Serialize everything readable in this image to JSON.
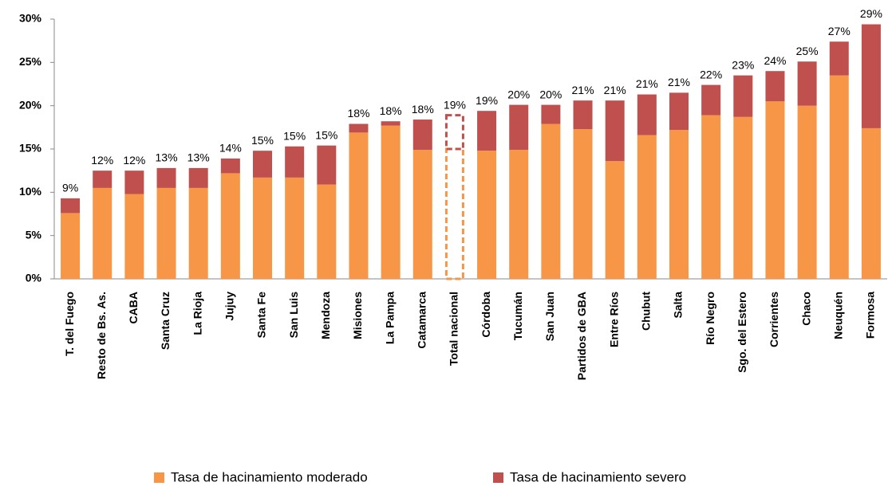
{
  "chart_data": {
    "type": "stacked_bar",
    "categories": [
      "T. del Fuego",
      "Resto de Bs. As.",
      "CABA",
      "Santa Cruz",
      "La Rioja",
      "Jujuy",
      "Santa Fe",
      "San Luis",
      "Mendoza",
      "Misiones",
      "La Pampa",
      "Catamarca",
      "Total nacional",
      "Córdoba",
      "Tucumán",
      "San Juan",
      "Partidos de GBA",
      "Entre Ríos",
      "Chubut",
      "Salta",
      "Río Negro",
      "Sgo. del Estero",
      "Corrientes",
      "Chaco",
      "Neuquén",
      "Formosa"
    ],
    "series": [
      {
        "name": "Tasa de hacinamiento moderado",
        "color": "#f79646",
        "values": [
          7.6,
          10.5,
          9.8,
          10.5,
          10.5,
          12.2,
          11.7,
          11.7,
          10.9,
          16.9,
          17.7,
          14.9,
          15.0,
          14.8,
          14.9,
          17.9,
          17.3,
          13.6,
          16.6,
          17.2,
          18.9,
          18.7,
          20.5,
          20.0,
          23.5,
          17.4
        ]
      },
      {
        "name": "Tasa de hacinamiento severo",
        "color": "#c0504d",
        "values": [
          1.7,
          2.0,
          2.7,
          2.3,
          2.3,
          1.7,
          3.1,
          3.6,
          4.5,
          1.0,
          0.5,
          3.5,
          3.9,
          4.6,
          5.2,
          2.2,
          3.3,
          7.0,
          4.7,
          4.3,
          3.5,
          4.8,
          3.5,
          5.1,
          3.9,
          12.0
        ]
      }
    ],
    "total_labels": [
      "9%",
      "12%",
      "12%",
      "13%",
      "13%",
      "14%",
      "15%",
      "15%",
      "15%",
      "18%",
      "18%",
      "18%",
      "19%",
      "19%",
      "20%",
      "20%",
      "21%",
      "21%",
      "21%",
      "21%",
      "22%",
      "23%",
      "24%",
      "25%",
      "27%",
      "29%"
    ],
    "highlight_category": "Total nacional",
    "ylim": [
      0,
      30
    ],
    "yticks": [
      {
        "value": 0,
        "label": "0%"
      },
      {
        "value": 5,
        "label": "5%"
      },
      {
        "value": 10,
        "label": "10%"
      },
      {
        "value": 15,
        "label": "15%"
      },
      {
        "value": 20,
        "label": "20%"
      },
      {
        "value": 25,
        "label": "25%"
      },
      {
        "value": 30,
        "label": "30%"
      }
    ],
    "grid": false,
    "legend": "bottom"
  }
}
